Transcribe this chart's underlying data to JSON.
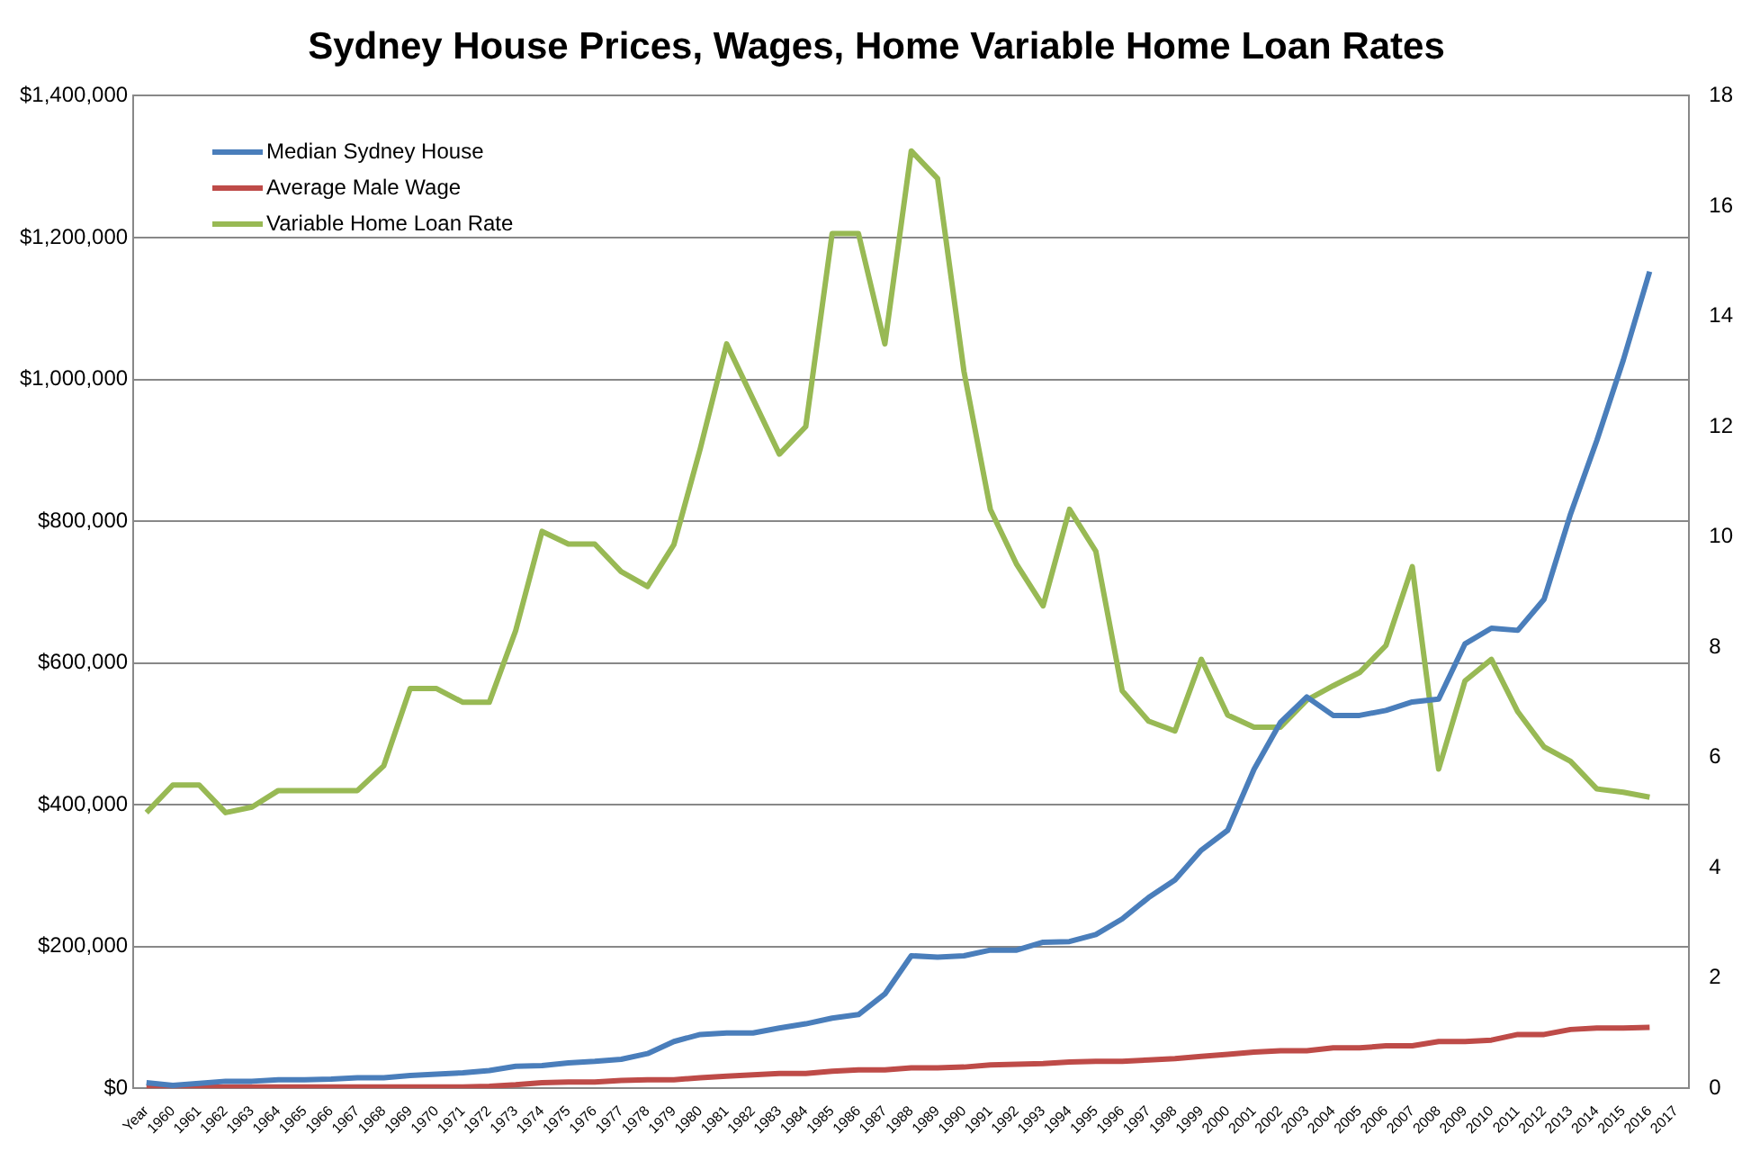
{
  "chart_data": {
    "type": "line",
    "title": "Sydney House Prices, Wages, Home Variable Home Loan Rates",
    "categories": [
      "Year",
      "1960",
      "1961",
      "1962",
      "1963",
      "1964",
      "1965",
      "1966",
      "1967",
      "1968",
      "1969",
      "1970",
      "1971",
      "1972",
      "1973",
      "1974",
      "1975",
      "1976",
      "1977",
      "1978",
      "1979",
      "1980",
      "1981",
      "1982",
      "1983",
      "1984",
      "1985",
      "1986",
      "1987",
      "1988",
      "1989",
      "1990",
      "1991",
      "1992",
      "1993",
      "1994",
      "1995",
      "1996",
      "1997",
      "1998",
      "1999",
      "2000",
      "2001",
      "2002",
      "2003",
      "2004",
      "2005",
      "2006",
      "2007",
      "2008",
      "2009",
      "2010",
      "2011",
      "2012",
      "2013",
      "2014",
      "2015",
      "2016",
      "2017"
    ],
    "series": [
      {
        "name": "Median Sydney House",
        "color": "#4a7ebb",
        "values": [
          8000,
          4000,
          7000,
          10000,
          10000,
          12000,
          12000,
          13000,
          15000,
          15000,
          18000,
          20000,
          22000,
          25000,
          31000,
          32000,
          36000,
          38000,
          41000,
          49000,
          66000,
          76000,
          78000,
          78000,
          85000,
          91000,
          99000,
          104000,
          133000,
          187000,
          185000,
          187000,
          195000,
          195000,
          206000,
          207000,
          217000,
          239000,
          269000,
          294000,
          336000,
          364000,
          450000,
          516000,
          552000,
          526000,
          526000,
          533000,
          545000,
          549000,
          627000,
          649000,
          646000,
          690000,
          810000,
          914000,
          1027000,
          1152000,
          null
        ]
      },
      {
        "name": "Average Male Wage",
        "color": "#be4b48",
        "values": [
          2000,
          2000,
          2000,
          2000,
          2000,
          2000,
          2000,
          2000,
          2000,
          2000,
          2000,
          2000,
          2000,
          3000,
          5000,
          8000,
          9000,
          9000,
          11000,
          12000,
          12000,
          15000,
          17000,
          19000,
          21000,
          21000,
          24000,
          26000,
          26000,
          29000,
          29000,
          30000,
          33000,
          34000,
          35000,
          37000,
          38000,
          38000,
          40000,
          42000,
          45000,
          48000,
          51000,
          53000,
          53000,
          57000,
          57000,
          60000,
          60000,
          66000,
          66000,
          68000,
          76000,
          76000,
          83000,
          85000,
          85000,
          86000,
          null
        ]
      },
      {
        "name": "Variable Home Loan Rate",
        "color": "#98b954",
        "axis": "y2",
        "values": [
          5.0,
          5.5,
          5.5,
          5.0,
          5.1,
          5.4,
          5.4,
          5.4,
          5.4,
          5.85,
          7.25,
          7.25,
          7.0,
          7.0,
          8.3,
          10.1,
          9.87,
          9.87,
          9.37,
          9.1,
          9.86,
          11.6,
          13.5,
          12.5,
          11.5,
          12.0,
          15.5,
          15.5,
          13.5,
          17.0,
          16.5,
          13.0,
          10.5,
          9.5,
          8.75,
          10.5,
          9.74,
          7.21,
          6.66,
          6.48,
          7.78,
          6.77,
          6.55,
          6.55,
          7.04,
          7.3,
          7.54,
          8.03,
          9.46,
          5.79,
          7.39,
          7.78,
          6.83,
          6.19,
          5.93,
          5.43,
          5.37,
          5.28,
          null
        ]
      }
    ],
    "ylim": [
      0,
      1400000
    ],
    "yticks": [
      {
        "value": 0,
        "label": "$0"
      },
      {
        "value": 200000,
        "label": "$200,000"
      },
      {
        "value": 400000,
        "label": "$400,000"
      },
      {
        "value": 600000,
        "label": "$600,000"
      },
      {
        "value": 800000,
        "label": "$800,000"
      },
      {
        "value": 1000000,
        "label": "$1,000,000"
      },
      {
        "value": 1200000,
        "label": "$1,200,000"
      },
      {
        "value": 1400000,
        "label": "$1,400,000"
      }
    ],
    "y2lim": [
      0,
      18
    ],
    "y2ticks": [
      0,
      2,
      4,
      6,
      8,
      10,
      12,
      14,
      16,
      18
    ],
    "grid": "y",
    "legend": "top left",
    "marker": "none",
    "line_style": "solid"
  }
}
